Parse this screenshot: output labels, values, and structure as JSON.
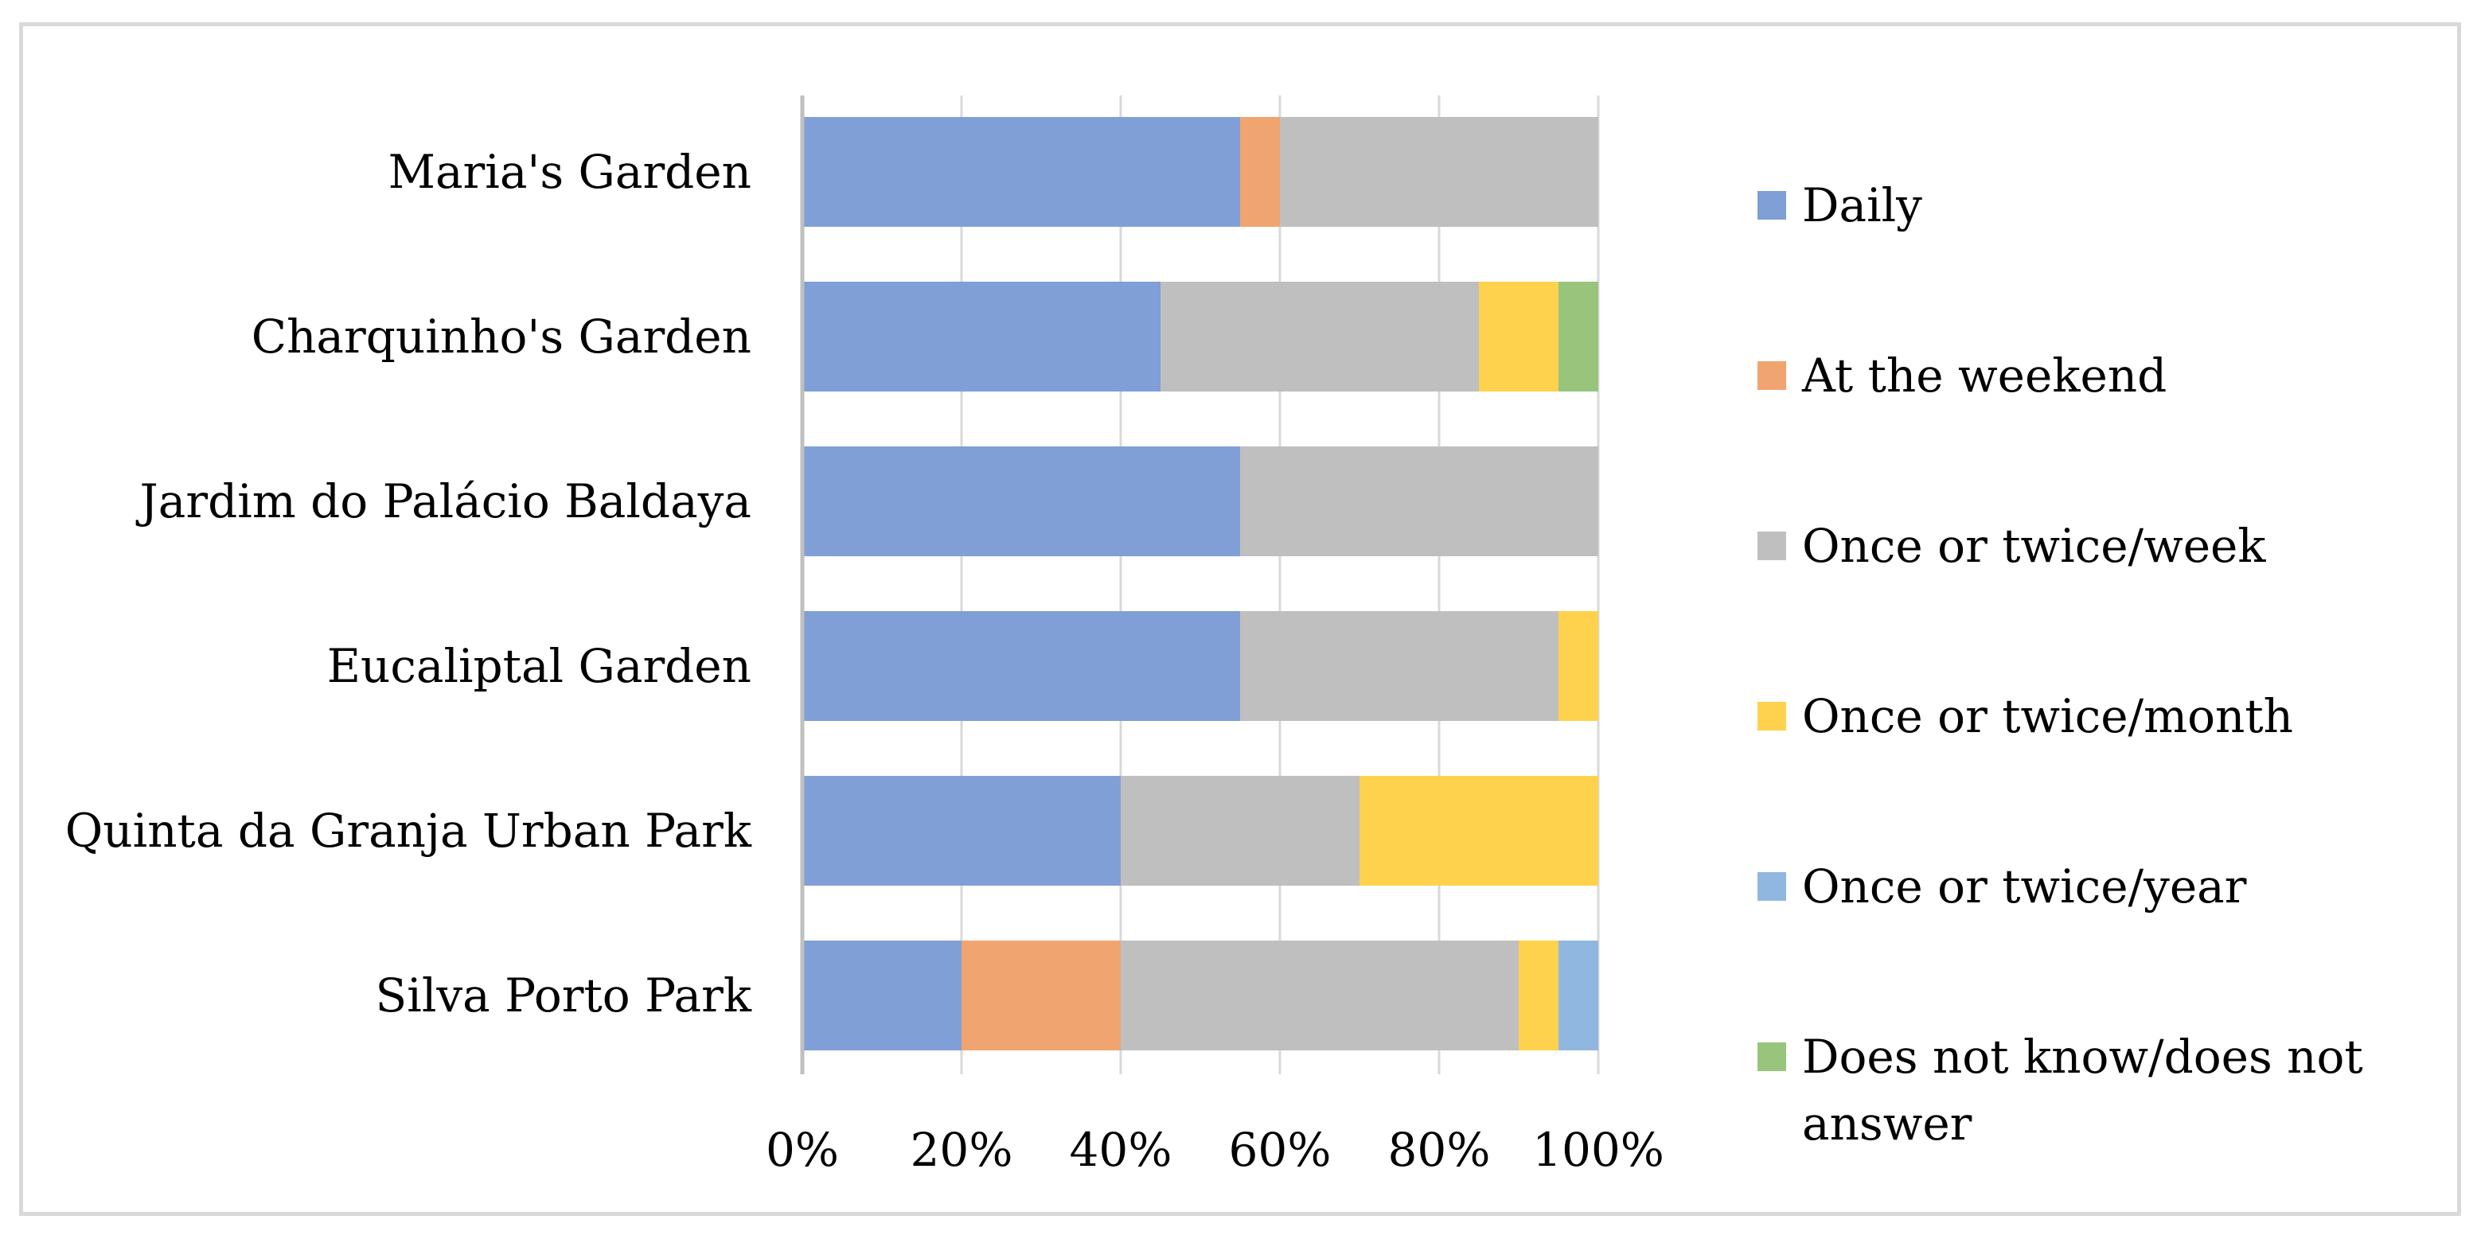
{
  "chart_data": {
    "type": "bar",
    "orientation": "horizontal",
    "stacked": "percent",
    "categories": [
      "Maria's Garden",
      "Charquinho's Garden",
      "Jardim do Palácio Baldaya",
      "Eucaliptal Garden",
      "Quinta da Granja Urban Park",
      "Silva Porto Park"
    ],
    "series": [
      {
        "name": "Daily",
        "color": "#7f9fd6",
        "values": [
          55,
          45,
          55,
          55,
          40,
          20
        ]
      },
      {
        "name": "At the weekend",
        "color": "#f0a46f",
        "values": [
          5,
          0,
          0,
          0,
          0,
          20
        ]
      },
      {
        "name": "Once or twice/week",
        "color": "#bfbfbf",
        "values": [
          40,
          40,
          45,
          40,
          30,
          50
        ]
      },
      {
        "name": "Once or twice/month",
        "color": "#ffd24d",
        "values": [
          0,
          10,
          0,
          5,
          30,
          5
        ]
      },
      {
        "name": "Once or twice/year",
        "color": "#8fb7e0",
        "values": [
          0,
          0,
          0,
          0,
          0,
          5
        ]
      },
      {
        "name": "Does not know/does not answer",
        "color": "#98c47c",
        "values": [
          0,
          5,
          0,
          0,
          0,
          0
        ]
      }
    ],
    "xlim": [
      0,
      100
    ],
    "x_ticks": [
      "0%",
      "20%",
      "40%",
      "60%",
      "80%",
      "100%"
    ],
    "grid": true,
    "legend_position": "right",
    "title": "",
    "xlabel": "",
    "ylabel": ""
  }
}
